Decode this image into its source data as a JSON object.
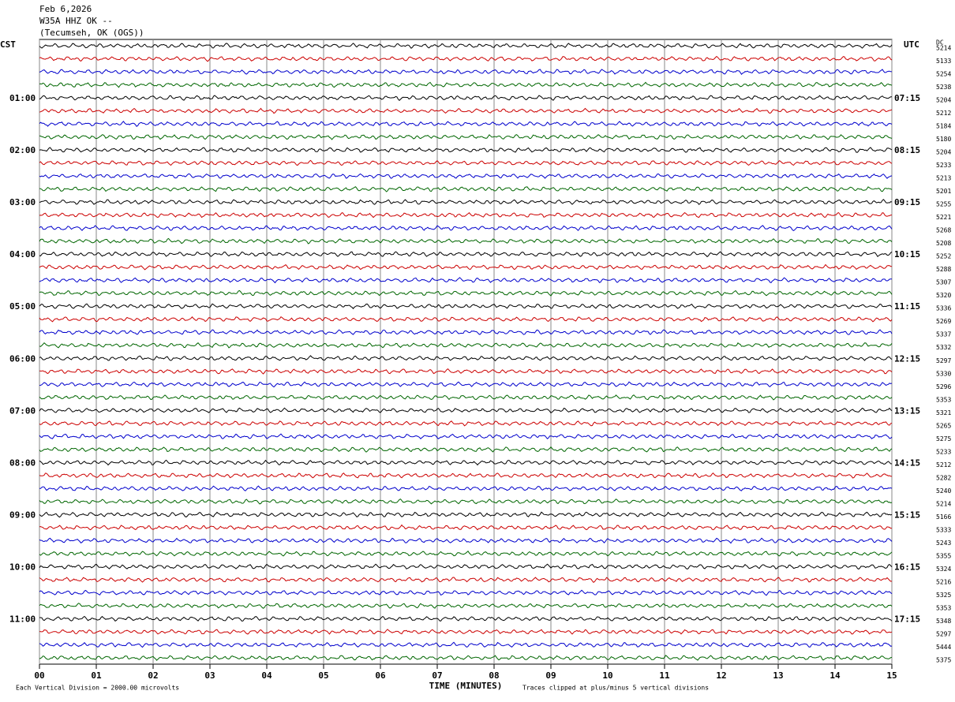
{
  "header": {
    "date": "Feb 6,2026",
    "station": "W35A HHZ OK --",
    "location": "(Tecumseh, OK (OGS))"
  },
  "left_axis": {
    "title": "CST",
    "labels": [
      "01:00",
      "02:00",
      "03:00",
      "04:00",
      "05:00",
      "06:00",
      "07:00",
      "08:00",
      "09:00",
      "10:00",
      "11:00"
    ]
  },
  "right_axis": {
    "title": "UTC",
    "labels": [
      "07:15",
      "08:15",
      "09:15",
      "10:15",
      "11:15",
      "12:15",
      "13:15",
      "14:15",
      "15:15",
      "16:15",
      "17:15"
    ]
  },
  "dc": {
    "title": "DC",
    "values": [
      5214,
      5133,
      5254,
      5238,
      5204,
      5212,
      5184,
      5180,
      5204,
      5233,
      5213,
      5201,
      5255,
      5221,
      5268,
      5208,
      5252,
      5288,
      5307,
      5320,
      5336,
      5269,
      5337,
      5332,
      5297,
      5330,
      5296,
      5353,
      5321,
      5265,
      5275,
      5233,
      5212,
      5282,
      5240,
      5214,
      5166,
      5333,
      5243,
      5355,
      5324,
      5216,
      5325,
      5353,
      5348,
      5297,
      5444,
      5375
    ]
  },
  "x_axis": {
    "title": "TIME (MINUTES)",
    "ticks": [
      "00",
      "01",
      "02",
      "03",
      "04",
      "05",
      "06",
      "07",
      "08",
      "09",
      "10",
      "11",
      "12",
      "13",
      "14",
      "15"
    ]
  },
  "footer": {
    "scale": "Each Vertical Division = 2000.00 microvolts",
    "clip": "Traces clipped at plus/minus 5 vertical divisions"
  }
}
